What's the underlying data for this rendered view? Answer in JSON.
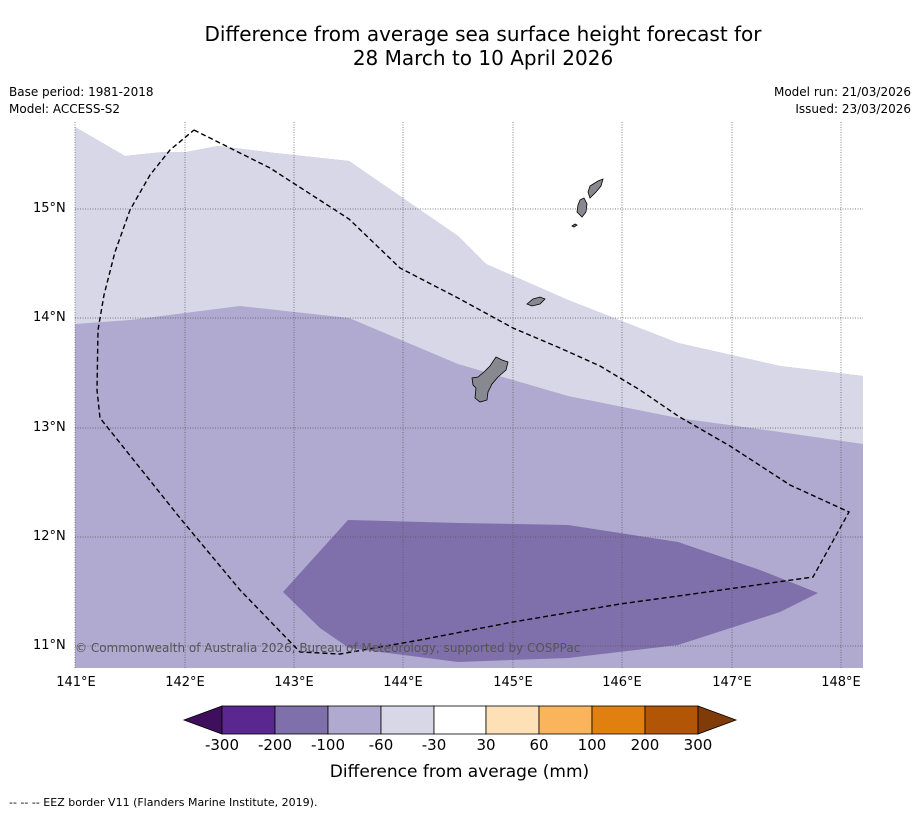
{
  "title_line1": "Difference from average sea surface height forecast for",
  "title_line2": "28 March to 10 April 2026",
  "base_period": "Base period: 1981-2018",
  "model": "Model: ACCESS-S2",
  "model_run": "Model run: 21/03/2026",
  "issued": "Issued: 23/03/2026",
  "copyright": "© Commonwealth of Australia 2026, Bureau of Meteorology, supported by COSPPac",
  "footnote": "-- -- -- EEZ border V11 (Flanders Marine Institute, 2019).",
  "lat_labels": [
    "15°N",
    "14°N",
    "13°N",
    "12°N",
    "11°N"
  ],
  "lon_labels": [
    "141°E",
    "142°E",
    "143°E",
    "144°E",
    "145°E",
    "146°E",
    "147°E",
    "148°E"
  ],
  "colorbar": {
    "title": "Difference from average (mm)",
    "tick_labels": [
      "-300",
      "-200",
      "-100",
      "-60",
      "-30",
      "30",
      "60",
      "100",
      "200",
      "300"
    ],
    "colors": [
      "#3f0e5d",
      "#5a2690",
      "#7f6fab",
      "#b0a9d0",
      "#d7d7e8",
      "#ffffff",
      "#fde0b6",
      "#f9b45c",
      "#e0810f",
      "#b35506",
      "#7f3b08"
    ]
  }
}
